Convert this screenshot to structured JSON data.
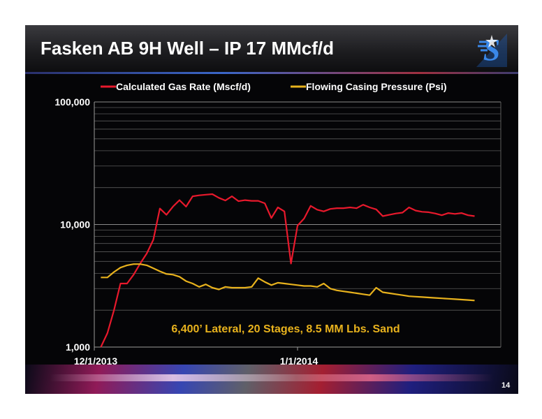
{
  "slide": {
    "title": "Fasken AB 9H Well – IP 17 MMcf/d",
    "page_number": "14",
    "logo_icon": "company-logo-icon"
  },
  "colors": {
    "background": "#050507",
    "gas_rate": "#e8192c",
    "casing_pressure": "#e8b21d",
    "annotation": "#e8b21d",
    "axis_text": "#ffffff"
  },
  "chart_data": {
    "type": "line",
    "y_scale": "log",
    "ylim": [
      1000,
      100000
    ],
    "y_ticks": [
      1000,
      10000,
      100000
    ],
    "y_tick_labels": [
      "1,000",
      "10,000",
      "100,000"
    ],
    "x_tick_labels": [
      "12/1/2013",
      "1/1/2014"
    ],
    "xlim": [
      "2013-12-01",
      "2014-02-01"
    ],
    "grid": true,
    "legend_position": "top",
    "annotation": "6,400’ Lateral, 20 Stages, 8.5 MM Lbs. Sand",
    "series": [
      {
        "name": "Calculated Gas Rate (Mscf/d)",
        "color": "#e8192c",
        "points": [
          [
            "2013-12-02",
            1000
          ],
          [
            "2013-12-03",
            1300
          ],
          [
            "2013-12-04",
            2000
          ],
          [
            "2013-12-05",
            3300
          ],
          [
            "2013-12-06",
            3300
          ],
          [
            "2013-12-07",
            3900
          ],
          [
            "2013-12-08",
            4800
          ],
          [
            "2013-12-09",
            5800
          ],
          [
            "2013-12-10",
            7500
          ],
          [
            "2013-12-11",
            13500
          ],
          [
            "2013-12-12",
            12000
          ],
          [
            "2013-12-13",
            14000
          ],
          [
            "2013-12-14",
            15800
          ],
          [
            "2013-12-15",
            14000
          ],
          [
            "2013-12-16",
            17000
          ],
          [
            "2013-12-17",
            17300
          ],
          [
            "2013-12-18",
            17500
          ],
          [
            "2013-12-19",
            17700
          ],
          [
            "2013-12-20",
            16500
          ],
          [
            "2013-12-21",
            15700
          ],
          [
            "2013-12-22",
            17000
          ],
          [
            "2013-12-23",
            15500
          ],
          [
            "2013-12-24",
            15800
          ],
          [
            "2013-12-25",
            15600
          ],
          [
            "2013-12-26",
            15600
          ],
          [
            "2013-12-27",
            14900
          ],
          [
            "2013-12-28",
            11300
          ],
          [
            "2013-12-29",
            13800
          ],
          [
            "2013-12-30",
            12800
          ],
          [
            "2013-12-31",
            4800
          ],
          [
            "2014-01-01",
            9800
          ],
          [
            "2014-01-02",
            11200
          ],
          [
            "2014-01-03",
            14200
          ],
          [
            "2014-01-04",
            13200
          ],
          [
            "2014-01-05",
            12800
          ],
          [
            "2014-01-06",
            13400
          ],
          [
            "2014-01-07",
            13600
          ],
          [
            "2014-01-08",
            13600
          ],
          [
            "2014-01-09",
            13800
          ],
          [
            "2014-01-10",
            13600
          ],
          [
            "2014-01-11",
            14500
          ],
          [
            "2014-01-12",
            13800
          ],
          [
            "2014-01-13",
            13300
          ],
          [
            "2014-01-14",
            11700
          ],
          [
            "2014-01-15",
            12000
          ],
          [
            "2014-01-16",
            12300
          ],
          [
            "2014-01-17",
            12500
          ],
          [
            "2014-01-18",
            13800
          ],
          [
            "2014-01-19",
            13000
          ],
          [
            "2014-01-20",
            12700
          ],
          [
            "2014-01-21",
            12600
          ],
          [
            "2014-01-22",
            12300
          ],
          [
            "2014-01-23",
            11900
          ],
          [
            "2014-01-24",
            12400
          ],
          [
            "2014-01-25",
            12200
          ],
          [
            "2014-01-26",
            12400
          ],
          [
            "2014-01-27",
            11900
          ],
          [
            "2014-01-28",
            11700
          ]
        ]
      },
      {
        "name": "Flowing Casing Pressure (Psi)",
        "color": "#e8b21d",
        "points": [
          [
            "2013-12-02",
            3700
          ],
          [
            "2013-12-03",
            3700
          ],
          [
            "2013-12-04",
            4100
          ],
          [
            "2013-12-05",
            4450
          ],
          [
            "2013-12-06",
            4650
          ],
          [
            "2013-12-07",
            4750
          ],
          [
            "2013-12-08",
            4750
          ],
          [
            "2013-12-09",
            4650
          ],
          [
            "2013-12-10",
            4400
          ],
          [
            "2013-12-11",
            4150
          ],
          [
            "2013-12-12",
            3950
          ],
          [
            "2013-12-13",
            3900
          ],
          [
            "2013-12-14",
            3750
          ],
          [
            "2013-12-15",
            3450
          ],
          [
            "2013-12-16",
            3300
          ],
          [
            "2013-12-17",
            3100
          ],
          [
            "2013-12-18",
            3250
          ],
          [
            "2013-12-19",
            3050
          ],
          [
            "2013-12-20",
            2950
          ],
          [
            "2013-12-21",
            3100
          ],
          [
            "2013-12-22",
            3050
          ],
          [
            "2013-12-23",
            3050
          ],
          [
            "2013-12-24",
            3050
          ],
          [
            "2013-12-25",
            3100
          ],
          [
            "2013-12-26",
            3650
          ],
          [
            "2013-12-27",
            3400
          ],
          [
            "2013-12-28",
            3200
          ],
          [
            "2013-12-29",
            3350
          ],
          [
            "2013-12-30",
            3300
          ],
          [
            "2013-12-31",
            3250
          ],
          [
            "2014-01-01",
            3200
          ],
          [
            "2014-01-02",
            3150
          ],
          [
            "2014-01-03",
            3150
          ],
          [
            "2014-01-04",
            3100
          ],
          [
            "2014-01-05",
            3300
          ],
          [
            "2014-01-06",
            3000
          ],
          [
            "2014-01-07",
            2900
          ],
          [
            "2014-01-08",
            2850
          ],
          [
            "2014-01-09",
            2800
          ],
          [
            "2014-01-10",
            2750
          ],
          [
            "2014-01-11",
            2700
          ],
          [
            "2014-01-12",
            2650
          ],
          [
            "2014-01-13",
            3050
          ],
          [
            "2014-01-14",
            2800
          ],
          [
            "2014-01-15",
            2750
          ],
          [
            "2014-01-16",
            2700
          ],
          [
            "2014-01-17",
            2650
          ],
          [
            "2014-01-18",
            2600
          ],
          [
            "2014-01-19",
            2580
          ],
          [
            "2014-01-20",
            2560
          ],
          [
            "2014-01-21",
            2540
          ],
          [
            "2014-01-22",
            2520
          ],
          [
            "2014-01-23",
            2500
          ],
          [
            "2014-01-24",
            2480
          ],
          [
            "2014-01-25",
            2460
          ],
          [
            "2014-01-26",
            2440
          ],
          [
            "2014-01-27",
            2420
          ],
          [
            "2014-01-28",
            2400
          ]
        ]
      }
    ]
  }
}
